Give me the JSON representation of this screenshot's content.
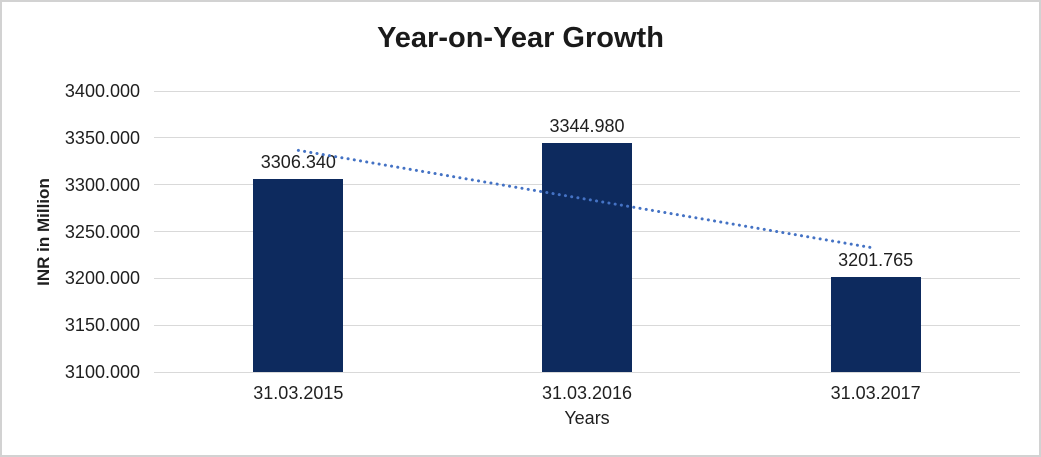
{
  "chart_data": {
    "type": "bar",
    "title": "Year-on-Year Growth",
    "xlabel": "Years",
    "ylabel": "INR in Million",
    "categories": [
      "31.03.2015",
      "31.03.2016",
      "31.03.2017"
    ],
    "values": [
      3306.34,
      3344.98,
      3201.765
    ],
    "data_labels": [
      "3306.340",
      "3344.980",
      "3201.765"
    ],
    "ylim": [
      3100,
      3400
    ],
    "ytick_step": 50,
    "ytick_decimals": 3,
    "grid": true,
    "legend_position": "none",
    "bar_color": "#0d2a5e",
    "gridline_color": "#d9d9d9",
    "trendline": {
      "type": "linear",
      "style": "dotted",
      "color": "#4472c4"
    }
  }
}
